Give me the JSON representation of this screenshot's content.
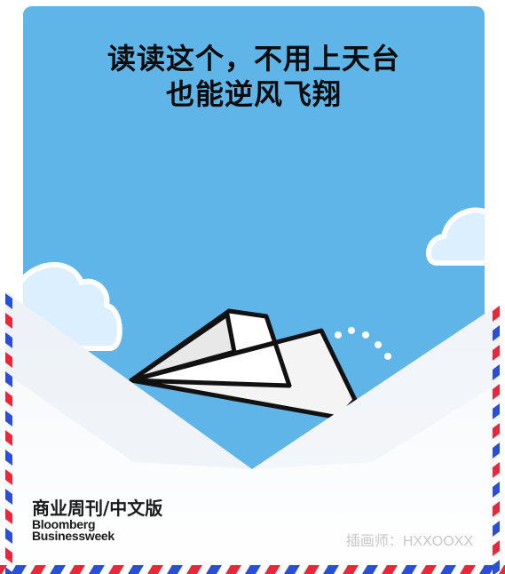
{
  "headline": {
    "line1": "读读这个，不用上天台",
    "line2": "也能逆风飞翔"
  },
  "brand": {
    "cn": "商业周刊/中文版",
    "en_line1": "Bloomberg",
    "en_line2": "Businessweek"
  },
  "credit": {
    "text": "插画师：HXXOOXX"
  },
  "colors": {
    "sky": "#5fb5e7",
    "stripe_red": "#e8283a",
    "stripe_blue": "#2a4fd6",
    "cloud": "#dcefff"
  },
  "icons": [
    "paper-plane-icon",
    "cloud-icon",
    "dotted-wind-trail-icon"
  ]
}
